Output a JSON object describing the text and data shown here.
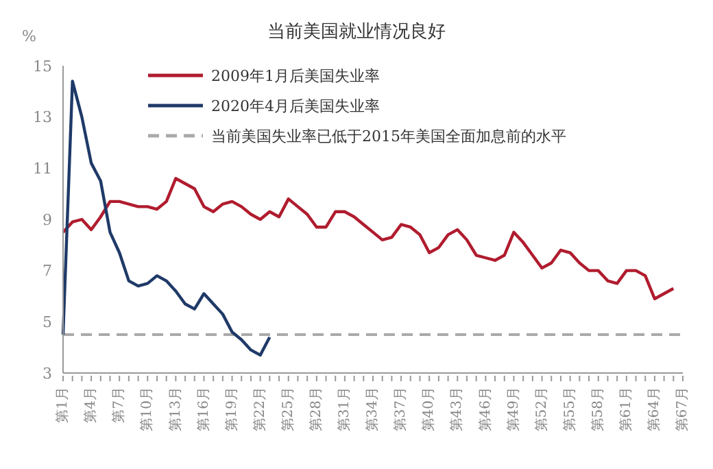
{
  "chart_data": {
    "type": "line",
    "title": "当前美国就业情况良好",
    "ylabel": "%",
    "categories": [
      "第1月",
      null,
      null,
      "第4月",
      null,
      null,
      "第7月",
      null,
      null,
      "第10月",
      null,
      null,
      "第13月",
      null,
      null,
      "第16月",
      null,
      null,
      "第19月",
      null,
      null,
      "第22月",
      null,
      null,
      "第25月",
      null,
      null,
      "第28月",
      null,
      null,
      "第31月",
      null,
      null,
      "第34月",
      null,
      null,
      "第37月",
      null,
      null,
      "第40月",
      null,
      null,
      "第43月",
      null,
      null,
      "第46月",
      null,
      null,
      "第49月",
      null,
      null,
      "第52月",
      null,
      null,
      "第55月",
      null,
      null,
      "第58月",
      null,
      null,
      "第61月",
      null,
      null,
      "第64月",
      null,
      null,
      "第67月"
    ],
    "series": [
      {
        "name": "2009年1月后美国失业率",
        "color": "#b01c2e",
        "values": [
          8.5,
          8.9,
          9.0,
          8.6,
          9.1,
          9.7,
          9.7,
          9.6,
          9.5,
          9.5,
          9.4,
          9.7,
          10.6,
          10.4,
          10.2,
          9.5,
          9.3,
          9.6,
          9.7,
          9.5,
          9.2,
          9.0,
          9.3,
          9.1,
          9.8,
          9.5,
          9.2,
          8.7,
          8.7,
          9.3,
          9.3,
          9.1,
          8.8,
          8.5,
          8.2,
          8.3,
          8.8,
          8.7,
          8.4,
          7.7,
          7.9,
          8.4,
          8.6,
          8.2,
          7.6,
          7.5,
          7.4,
          7.6,
          8.5,
          8.1,
          7.6,
          7.1,
          7.3,
          7.8,
          7.7,
          7.3,
          7.0,
          7.0,
          6.6,
          6.5,
          7.0,
          7.0,
          6.8,
          5.9,
          6.1,
          6.3,
          null
        ]
      },
      {
        "name": "2020年4月后美国失业率",
        "color": "#1f3a68",
        "values": [
          4.5,
          14.4,
          13.0,
          11.2,
          10.5,
          8.5,
          7.7,
          6.6,
          6.4,
          6.5,
          6.8,
          6.6,
          6.2,
          5.7,
          5.5,
          6.1,
          5.7,
          5.3,
          4.6,
          4.3,
          3.9,
          3.7,
          4.4,
          null,
          null,
          null,
          null,
          null,
          null,
          null,
          null,
          null,
          null,
          null,
          null,
          null,
          null,
          null,
          null,
          null,
          null,
          null,
          null,
          null,
          null,
          null,
          null,
          null,
          null,
          null,
          null,
          null,
          null,
          null,
          null,
          null,
          null,
          null,
          null,
          null,
          null,
          null,
          null,
          null,
          null,
          null,
          null
        ]
      }
    ],
    "ref_lines": [
      {
        "axis": "y",
        "value": 4.5,
        "label": "当前美国失业率已低于2015年美国全面加息前的水平",
        "color": "#aaaaaa",
        "line_style": "dashed"
      }
    ],
    "ylim": [
      3,
      15
    ],
    "yticks": [
      3,
      5,
      7,
      9,
      11,
      13,
      15
    ],
    "grid": false,
    "legend": "top left",
    "line_style": "solid",
    "marker": "none"
  }
}
